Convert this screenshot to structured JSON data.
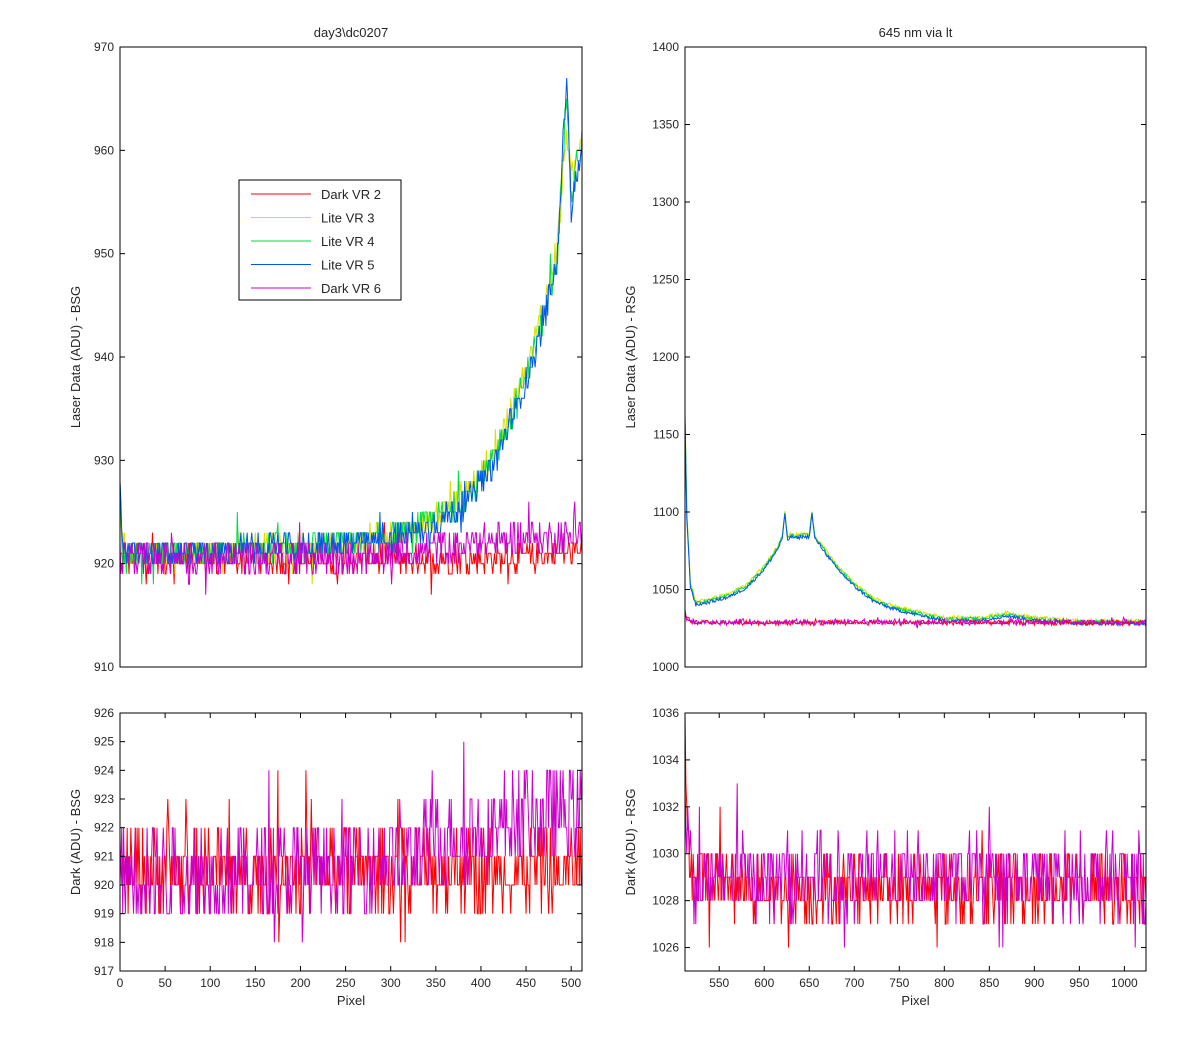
{
  "figure": {
    "titles": [
      "day3\\dc0207",
      "645 nm via lt"
    ]
  },
  "chart_data": [
    {
      "type": "line",
      "title": "day3\\dc0207",
      "xlabel": "",
      "ylabel": "Laser Data (ADU) - BSG",
      "xlim": [
        0,
        512
      ],
      "ylim": [
        910,
        970
      ],
      "xticks": [],
      "yticks": [
        910,
        920,
        930,
        940,
        950,
        960,
        970
      ],
      "legend": {
        "position": "upper-left-inside",
        "entries": [
          "Dark VR 2",
          "Lite VR 3",
          "Lite VR 4",
          "Lite VR 5",
          "Dark VR 6"
        ]
      },
      "series": [
        {
          "name": "Dark VR 2",
          "color": "#ff0000",
          "x": [
            0,
            100,
            200,
            300,
            400,
            450,
            480,
            512
          ],
          "y": [
            920.5,
            920.5,
            920.5,
            920.5,
            920.5,
            920.5,
            921,
            921
          ]
        },
        {
          "name": "Lite VR 3",
          "color": "#dddd00",
          "x": [
            0,
            2,
            5,
            50,
            100,
            150,
            200,
            250,
            300,
            330,
            350,
            370,
            390,
            410,
            430,
            450,
            470,
            485,
            495,
            500,
            505,
            512
          ],
          "y": [
            929,
            922,
            921,
            921,
            921,
            921.5,
            921.5,
            922,
            922.5,
            923.5,
            924.5,
            926,
            927.5,
            930,
            934,
            938.5,
            945,
            951,
            962,
            957,
            959,
            962
          ]
        },
        {
          "name": "Lite VR 4",
          "color": "#00dd44",
          "x": [
            0,
            2,
            5,
            50,
            100,
            150,
            200,
            250,
            300,
            330,
            350,
            370,
            390,
            410,
            430,
            450,
            470,
            485,
            495,
            500,
            505,
            512
          ],
          "y": [
            929,
            922,
            921,
            921,
            921,
            921.5,
            921.5,
            922,
            922.5,
            923.5,
            924.5,
            925.5,
            927,
            929.5,
            933.5,
            938,
            944,
            950,
            966,
            955,
            958,
            961
          ]
        },
        {
          "name": "Lite VR 5",
          "color": "#0055ee",
          "x": [
            0,
            2,
            5,
            50,
            100,
            150,
            200,
            250,
            300,
            330,
            350,
            370,
            390,
            410,
            430,
            450,
            470,
            485,
            495,
            500,
            505,
            512
          ],
          "y": [
            929,
            922,
            921,
            921,
            921,
            921.5,
            921.5,
            922,
            922.5,
            923,
            924,
            925,
            926.5,
            929,
            933,
            937.5,
            943.5,
            949.5,
            968,
            954,
            957,
            960
          ]
        },
        {
          "name": "Dark VR 6",
          "color": "#cc00cc",
          "x": [
            0,
            100,
            200,
            300,
            350,
            400,
            450,
            500,
            512
          ],
          "y": [
            920.5,
            920.5,
            920.5,
            921,
            921.5,
            922,
            922.5,
            922.5,
            923
          ]
        }
      ]
    },
    {
      "type": "line",
      "title": "645 nm via lt",
      "xlabel": "",
      "ylabel": "Laser Data (ADU) - RSG",
      "xlim": [
        512,
        1024
      ],
      "ylim": [
        1000,
        1400
      ],
      "xticks": [],
      "yticks": [
        1000,
        1050,
        1100,
        1150,
        1200,
        1250,
        1300,
        1350,
        1400
      ],
      "series": [
        {
          "name": "",
          "color": "#dddd00",
          "x": [
            512,
            514,
            518,
            524,
            540,
            560,
            580,
            600,
            615,
            620,
            623,
            626,
            630,
            638,
            640,
            650,
            653,
            656,
            660,
            680,
            700,
            720,
            740,
            760,
            800,
            840,
            870,
            900,
            950,
            1000,
            1024
          ],
          "y": [
            1165,
            1100,
            1055,
            1042,
            1044,
            1047,
            1053,
            1065,
            1078,
            1085,
            1101,
            1084,
            1086,
            1085,
            1086,
            1086,
            1101,
            1085,
            1082,
            1066,
            1054,
            1045,
            1040,
            1037,
            1032,
            1032,
            1035,
            1032,
            1030,
            1030,
            1030
          ]
        },
        {
          "name": "",
          "color": "#00dd44",
          "x": [
            512,
            514,
            518,
            524,
            540,
            560,
            580,
            600,
            615,
            620,
            623,
            626,
            630,
            638,
            640,
            650,
            653,
            656,
            660,
            680,
            700,
            720,
            740,
            760,
            800,
            840,
            870,
            900,
            950,
            1000,
            1024
          ],
          "y": [
            1162,
            1098,
            1053,
            1041,
            1043,
            1046,
            1052,
            1064,
            1077,
            1084,
            1099,
            1083,
            1085,
            1084,
            1085,
            1085,
            1100,
            1084,
            1081,
            1065,
            1053,
            1044,
            1039,
            1036,
            1031,
            1031,
            1034,
            1031,
            1029,
            1029,
            1029
          ]
        },
        {
          "name": "",
          "color": "#0055ee",
          "x": [
            512,
            514,
            518,
            524,
            540,
            560,
            580,
            600,
            615,
            620,
            623,
            626,
            630,
            638,
            640,
            650,
            653,
            656,
            660,
            680,
            700,
            720,
            740,
            760,
            800,
            840,
            870,
            900,
            950,
            1000,
            1024
          ],
          "y": [
            1160,
            1096,
            1052,
            1040,
            1042,
            1045,
            1051,
            1063,
            1076,
            1083,
            1098,
            1082,
            1084,
            1083,
            1084,
            1084,
            1099,
            1083,
            1080,
            1064,
            1052,
            1043,
            1038,
            1035,
            1030,
            1030,
            1033,
            1030,
            1028,
            1028,
            1028
          ]
        },
        {
          "name": "",
          "color": "#ff0000",
          "x": [
            512,
            514,
            520,
            600,
            700,
            800,
            900,
            1000,
            1024
          ],
          "y": [
            1035,
            1032,
            1029,
            1028.5,
            1028.5,
            1028.5,
            1028.5,
            1028.5,
            1028.5
          ]
        },
        {
          "name": "",
          "color": "#cc00cc",
          "x": [
            512,
            514,
            520,
            600,
            700,
            800,
            900,
            1000,
            1024
          ],
          "y": [
            1033,
            1031,
            1029,
            1029,
            1029,
            1029,
            1029,
            1029,
            1029
          ]
        }
      ]
    },
    {
      "type": "line",
      "title": "",
      "xlabel": "Pixel",
      "ylabel": "Dark (ADU) - BSG",
      "xlim": [
        0,
        512
      ],
      "ylim": [
        917,
        926
      ],
      "xticks": [
        0,
        50,
        100,
        150,
        200,
        250,
        300,
        350,
        400,
        450,
        500
      ],
      "yticks": [
        917,
        918,
        919,
        920,
        921,
        922,
        923,
        924,
        925,
        926
      ],
      "series": [
        {
          "name": "",
          "color": "#ff0000",
          "x": [
            0,
            100,
            200,
            300,
            400,
            450,
            500,
            512
          ],
          "y": [
            920.5,
            920.5,
            920.5,
            920.5,
            920.5,
            920.5,
            920.5,
            921
          ]
        },
        {
          "name": "",
          "color": "#cc00cc",
          "x": [
            0,
            100,
            200,
            300,
            350,
            400,
            450,
            500,
            512
          ],
          "y": [
            920.5,
            920.5,
            920.5,
            921,
            921.5,
            922,
            922.5,
            922.5,
            923
          ]
        }
      ]
    },
    {
      "type": "line",
      "title": "",
      "xlabel": "Pixel",
      "ylabel": "Dark (ADU) - RSG",
      "xlim": [
        512,
        1024
      ],
      "ylim": [
        1025,
        1036
      ],
      "xticks": [
        550,
        600,
        650,
        700,
        750,
        800,
        850,
        900,
        950,
        1000
      ],
      "yticks": [
        1026,
        1028,
        1030,
        1032,
        1034,
        1036
      ],
      "series": [
        {
          "name": "",
          "color": "#ff0000",
          "x": [
            512,
            514,
            520,
            600,
            700,
            800,
            900,
            1000,
            1024
          ],
          "y": [
            1035,
            1032,
            1029,
            1028.5,
            1028.5,
            1028.5,
            1028.5,
            1028.5,
            1028.5
          ]
        },
        {
          "name": "",
          "color": "#cc00cc",
          "x": [
            512,
            514,
            520,
            600,
            700,
            800,
            900,
            1000,
            1024
          ],
          "y": [
            1033,
            1031,
            1029,
            1029,
            1029,
            1029,
            1029,
            1029,
            1029
          ]
        }
      ]
    }
  ]
}
